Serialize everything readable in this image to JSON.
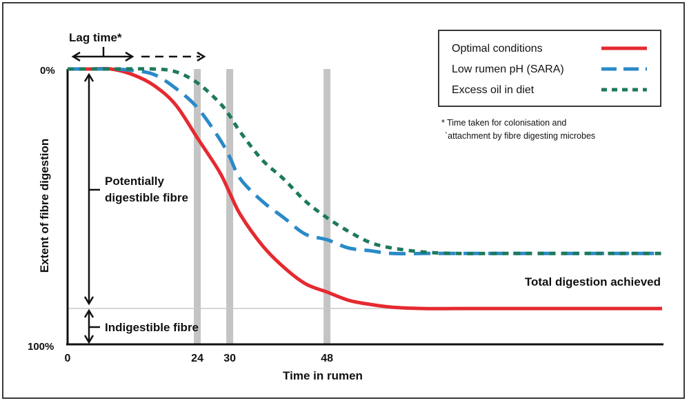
{
  "chart_data": {
    "type": "line",
    "xlabel": "Time in rumen",
    "ylabel": "Extent of fibre digestion",
    "x_ticks": [
      "0",
      "24",
      "30",
      "48"
    ],
    "y_ticks": [
      "0%",
      "100%"
    ],
    "xlim": [
      0,
      110
    ],
    "ylim": [
      0,
      100
    ],
    "reference_lines_x": [
      24,
      30,
      48
    ],
    "series": [
      {
        "name": "Optimal conditions",
        "color": "#e52a30",
        "style": "solid",
        "x": [
          0,
          4,
          8,
          12,
          16,
          20,
          24,
          28,
          30,
          32,
          36,
          40,
          44,
          48,
          52,
          56,
          60,
          66,
          72,
          80,
          90,
          100,
          110
        ],
        "y": [
          0,
          0,
          0,
          2,
          6,
          13,
          25,
          37,
          45,
          53,
          64,
          72,
          78,
          81,
          84,
          85.5,
          86.5,
          87,
          87,
          87,
          87,
          87,
          87
        ]
      },
      {
        "name": "Low rumen pH (SARA)",
        "color": "#2a8ac8",
        "style": "dashed",
        "x": [
          0,
          8,
          12,
          16,
          20,
          24,
          28,
          30,
          32,
          36,
          40,
          44,
          48,
          52,
          56,
          60,
          66,
          72,
          80,
          90,
          100,
          110
        ],
        "y": [
          0,
          0,
          0.5,
          2,
          7,
          14,
          25,
          32,
          40,
          48,
          54,
          60,
          62,
          65,
          66,
          67,
          67,
          67,
          67,
          67,
          67,
          67
        ]
      },
      {
        "name": "Excess oil in diet",
        "color": "#1d7a5c",
        "style": "dotted",
        "x": [
          0,
          8,
          16,
          20,
          24,
          28,
          30,
          32,
          36,
          40,
          44,
          48,
          52,
          56,
          60,
          66,
          72,
          80,
          90,
          100,
          110
        ],
        "y": [
          0,
          0,
          0,
          1,
          5,
          12,
          17,
          23,
          33,
          40,
          48,
          54,
          59,
          63,
          65,
          66.5,
          67,
          67,
          67,
          67,
          67
        ]
      }
    ],
    "annotations": {
      "lag_time": "Lag time*",
      "potentially_digestible": [
        "Potentially",
        "digestible fibre"
      ],
      "indigestible": "Indigestible fibre",
      "total_digestion": "Total digestion achieved",
      "footnote": [
        "* Time taken for colonisation and",
        "`attachment by fibre digesting microbes"
      ]
    }
  }
}
